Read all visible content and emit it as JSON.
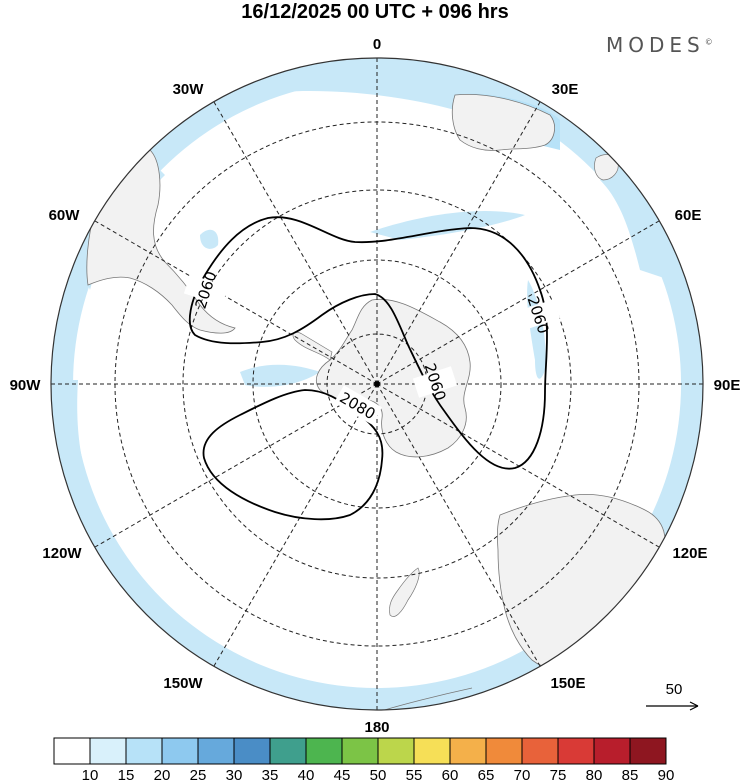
{
  "title": "16/12/2025  00 UTC  + 096 hrs",
  "brand": "MODES",
  "brand_mark": "©",
  "longitude_labels": {
    "lon_0": "0",
    "lon_30e": "30E",
    "lon_60e": "60E",
    "lon_90e": "90E",
    "lon_120e": "120E",
    "lon_150e": "150E",
    "lon_180": "180",
    "lon_150w": "150W",
    "lon_120w": "120W",
    "lon_90w": "90W",
    "lon_60w": "60W",
    "lon_30w": "30W"
  },
  "contours": {
    "c1": "2060",
    "c2": "2060",
    "c3": "2060",
    "c4": "2080"
  },
  "vector_reference": "50",
  "colorbar": {
    "ticks": [
      "10",
      "15",
      "20",
      "25",
      "30",
      "35",
      "40",
      "45",
      "50",
      "55",
      "60",
      "65",
      "70",
      "75",
      "80",
      "85",
      "90"
    ],
    "colors": [
      "#ffffff",
      "#d9f1fb",
      "#b7e2f8",
      "#8ec9ef",
      "#66a9dc",
      "#4a8dc6",
      "#3f9f8d",
      "#4db54f",
      "#7cc446",
      "#bcd64b",
      "#f6df57",
      "#f4b04a",
      "#f08a3a",
      "#e8623a",
      "#d93a36",
      "#b81e2c",
      "#8e1620"
    ]
  }
}
